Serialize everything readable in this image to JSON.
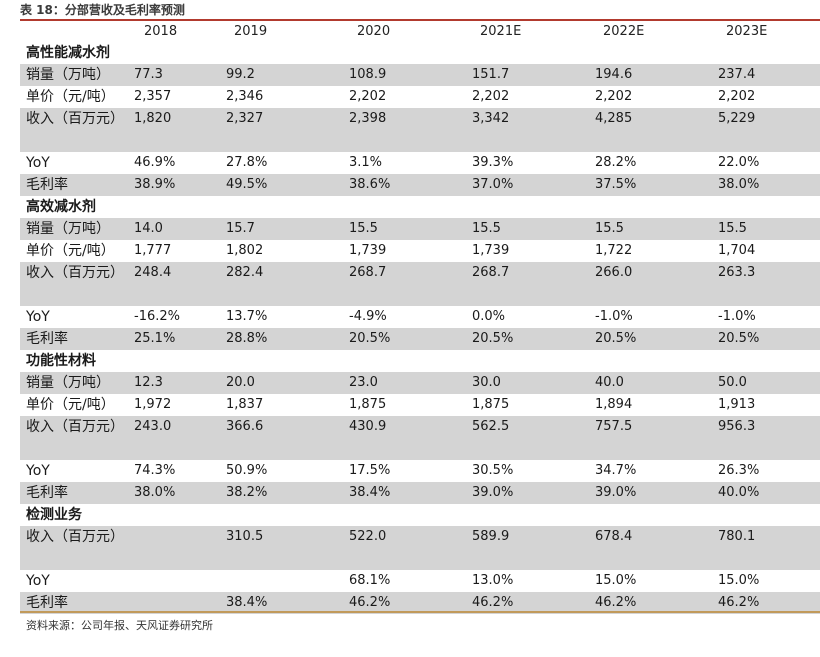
{
  "title": "表 18：分部营收及毛利率预测",
  "columns": [
    "2018",
    "2019",
    "2020",
    "2021E",
    "2022E",
    "2023E"
  ],
  "sections": [
    {
      "name": "高性能减水剂",
      "rows": [
        {
          "label": "销量（万吨）",
          "values": [
            "77.3",
            "99.2",
            "108.9",
            "151.7",
            "194.6",
            "237.4"
          ]
        },
        {
          "label": "单价（元/吨）",
          "values": [
            "2,357",
            "2,346",
            "2,202",
            "2,202",
            "2,202",
            "2,202"
          ]
        },
        {
          "label": "收入（百万元）",
          "values": [
            "1,820",
            "2,327",
            "2,398",
            "3,342",
            "4,285",
            "5,229"
          ]
        },
        {
          "label": "YoY",
          "values": [
            "46.9%",
            "27.8%",
            "3.1%",
            "39.3%",
            "28.2%",
            "22.0%"
          ]
        },
        {
          "label": "毛利率",
          "values": [
            "38.9%",
            "49.5%",
            "38.6%",
            "37.0%",
            "37.5%",
            "38.0%"
          ]
        }
      ]
    },
    {
      "name": "高效减水剂",
      "rows": [
        {
          "label": "销量（万吨）",
          "values": [
            "14.0",
            "15.7",
            "15.5",
            "15.5",
            "15.5",
            "15.5"
          ]
        },
        {
          "label": "单价（元/吨）",
          "values": [
            "1,777",
            "1,802",
            "1,739",
            "1,739",
            "1,722",
            "1,704"
          ]
        },
        {
          "label": "收入（百万元）",
          "values": [
            "248.4",
            "282.4",
            "268.7",
            "268.7",
            "266.0",
            "263.3"
          ]
        },
        {
          "label": "YoY",
          "values": [
            "-16.2%",
            "13.7%",
            "-4.9%",
            "0.0%",
            "-1.0%",
            "-1.0%"
          ]
        },
        {
          "label": "毛利率",
          "values": [
            "25.1%",
            "28.8%",
            "20.5%",
            "20.5%",
            "20.5%",
            "20.5%"
          ]
        }
      ]
    },
    {
      "name": "功能性材料",
      "rows": [
        {
          "label": "销量（万吨）",
          "values": [
            "12.3",
            "20.0",
            "23.0",
            "30.0",
            "40.0",
            "50.0"
          ]
        },
        {
          "label": "单价（元/吨）",
          "values": [
            "1,972",
            "1,837",
            "1,875",
            "1,875",
            "1,894",
            "1,913"
          ]
        },
        {
          "label": "收入（百万元）",
          "values": [
            "243.0",
            "366.6",
            "430.9",
            "562.5",
            "757.5",
            "956.3"
          ]
        },
        {
          "label": "YoY",
          "values": [
            "74.3%",
            "50.9%",
            "17.5%",
            "30.5%",
            "34.7%",
            "26.3%"
          ]
        },
        {
          "label": "毛利率",
          "values": [
            "38.0%",
            "38.2%",
            "38.4%",
            "39.0%",
            "39.0%",
            "40.0%"
          ]
        }
      ]
    },
    {
      "name": "检测业务",
      "rows": [
        {
          "label": "收入（百万元）",
          "values": [
            "",
            "310.5",
            "522.0",
            "589.9",
            "678.4",
            "780.1"
          ]
        },
        {
          "label": "YoY",
          "values": [
            "",
            "",
            "68.1%",
            "13.0%",
            "15.0%",
            "15.0%"
          ]
        },
        {
          "label": "毛利率",
          "values": [
            "",
            "38.4%",
            "46.2%",
            "46.2%",
            "46.2%",
            "46.2%"
          ]
        }
      ]
    }
  ],
  "source": "资料来源：公司年报、天风证券研究所"
}
